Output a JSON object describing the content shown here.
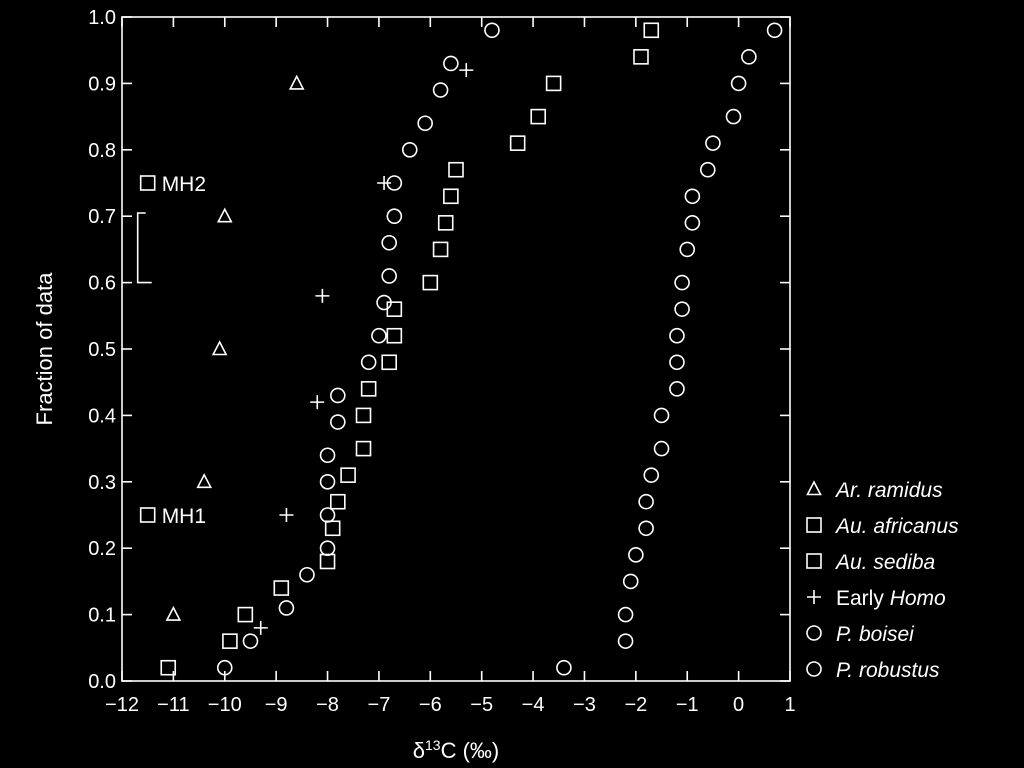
{
  "chart_data": {
    "type": "scatter",
    "title": "",
    "xlabel": "δ13C (‰)",
    "xlabel_main": "δ",
    "xlabel_sup": "13",
    "xlabel_rest": "C (‰)",
    "ylabel": "Fraction of data",
    "xlim": [
      -12,
      1
    ],
    "ylim": [
      0,
      1
    ],
    "x_ticks": [
      "−12",
      "−11",
      "−10",
      "−9",
      "−8",
      "−7",
      "−6",
      "−5",
      "−4",
      "−3",
      "−2",
      "−1",
      "0",
      "1"
    ],
    "x_tick_values": [
      -12,
      -11,
      -10,
      -9,
      -8,
      -7,
      -6,
      -5,
      -4,
      -3,
      -2,
      -1,
      0,
      1
    ],
    "y_ticks": [
      "0.0",
      "0.1",
      "0.2",
      "0.3",
      "0.4",
      "0.5",
      "0.6",
      "0.7",
      "0.8",
      "0.9",
      "1.0"
    ],
    "y_tick_values": [
      0,
      0.1,
      0.2,
      0.3,
      0.4,
      0.5,
      0.6,
      0.7,
      0.8,
      0.9,
      1.0
    ],
    "grid": false,
    "legend_position": "right",
    "legend": [
      {
        "marker": "triangle",
        "parts": [
          {
            "text": "Ar. ramidus",
            "italic": true
          }
        ]
      },
      {
        "marker": "square",
        "parts": [
          {
            "text": "Au. africanus",
            "italic": true
          }
        ]
      },
      {
        "marker": "square",
        "parts": [
          {
            "text": "Au. sediba",
            "italic": true
          }
        ]
      },
      {
        "marker": "plus",
        "parts": [
          {
            "text": "Early ",
            "italic": false
          },
          {
            "text": "Homo",
            "italic": true
          }
        ]
      },
      {
        "marker": "circle",
        "parts": [
          {
            "text": "P. boisei",
            "italic": true
          }
        ]
      },
      {
        "marker": "circle",
        "parts": [
          {
            "text": "P. robustus",
            "italic": true
          }
        ]
      }
    ],
    "annotations": [
      {
        "label": "MH2",
        "marker": "square",
        "x": -11.5,
        "y": 0.75
      },
      {
        "label": "MH1",
        "marker": "square",
        "x": -11.5,
        "y": 0.25
      }
    ],
    "series": [
      {
        "marker": "triangle",
        "points": [
          [
            -11,
            0.1
          ],
          [
            -10.4,
            0.3
          ],
          [
            -10.1,
            0.5
          ],
          [
            -10,
            0.7
          ],
          [
            -8.6,
            0.9
          ]
        ]
      },
      {
        "marker": "square",
        "points": [
          [
            -11.1,
            0.02
          ],
          [
            -9.9,
            0.06
          ],
          [
            -9.6,
            0.1
          ],
          [
            -8.9,
            0.14
          ],
          [
            -8,
            0.18
          ],
          [
            -7.9,
            0.23
          ],
          [
            -7.8,
            0.27
          ],
          [
            -7.6,
            0.31
          ],
          [
            -7.3,
            0.35
          ],
          [
            -7.3,
            0.4
          ],
          [
            -7.2,
            0.44
          ],
          [
            -6.8,
            0.48
          ],
          [
            -6.7,
            0.52
          ],
          [
            -6.7,
            0.56
          ],
          [
            -6,
            0.6
          ],
          [
            -5.8,
            0.65
          ],
          [
            -5.7,
            0.69
          ],
          [
            -5.6,
            0.73
          ],
          [
            -5.5,
            0.77
          ],
          [
            -4.3,
            0.81
          ],
          [
            -3.9,
            0.85
          ],
          [
            -3.6,
            0.9
          ],
          [
            -1.9,
            0.94
          ],
          [
            -1.7,
            0.98
          ]
        ]
      },
      {
        "marker": "plus",
        "points": [
          [
            -9.3,
            0.08
          ],
          [
            -8.8,
            0.25
          ],
          [
            -8.2,
            0.42
          ],
          [
            -8.1,
            0.58
          ],
          [
            -6.9,
            0.75
          ],
          [
            -5.3,
            0.92
          ]
        ]
      },
      {
        "marker": "circle",
        "points": [
          [
            -2.2,
            0.06
          ],
          [
            -2.2,
            0.1
          ],
          [
            -2.1,
            0.15
          ],
          [
            -2,
            0.19
          ],
          [
            -1.8,
            0.23
          ],
          [
            -1.8,
            0.27
          ],
          [
            -1.7,
            0.31
          ],
          [
            -1.5,
            0.35
          ],
          [
            -1.5,
            0.4
          ],
          [
            -1.2,
            0.44
          ],
          [
            -1.2,
            0.48
          ],
          [
            -1.2,
            0.52
          ],
          [
            -1.1,
            0.56
          ],
          [
            -1.1,
            0.6
          ],
          [
            -1,
            0.65
          ],
          [
            -0.9,
            0.69
          ],
          [
            -0.9,
            0.73
          ],
          [
            -0.6,
            0.77
          ],
          [
            -0.5,
            0.81
          ],
          [
            -0.1,
            0.85
          ],
          [
            0,
            0.9
          ],
          [
            0.2,
            0.94
          ],
          [
            0.7,
            0.98
          ]
        ]
      },
      {
        "marker": "circle",
        "points": [
          [
            -10,
            0.02
          ],
          [
            -3.4,
            0.02
          ],
          [
            -9.5,
            0.06
          ],
          [
            -8.8,
            0.11
          ],
          [
            -8.4,
            0.16
          ],
          [
            -8,
            0.2
          ],
          [
            -8,
            0.25
          ],
          [
            -8,
            0.3
          ],
          [
            -8,
            0.34
          ],
          [
            -7.8,
            0.39
          ],
          [
            -7.8,
            0.43
          ],
          [
            -7.2,
            0.48
          ],
          [
            -7,
            0.52
          ],
          [
            -6.9,
            0.57
          ],
          [
            -6.8,
            0.61
          ],
          [
            -6.8,
            0.66
          ],
          [
            -6.7,
            0.7
          ],
          [
            -6.7,
            0.75
          ],
          [
            -6.4,
            0.8
          ],
          [
            -6.1,
            0.84
          ],
          [
            -5.8,
            0.89
          ],
          [
            -5.6,
            0.93
          ],
          [
            -4.8,
            0.98
          ]
        ]
      }
    ]
  }
}
